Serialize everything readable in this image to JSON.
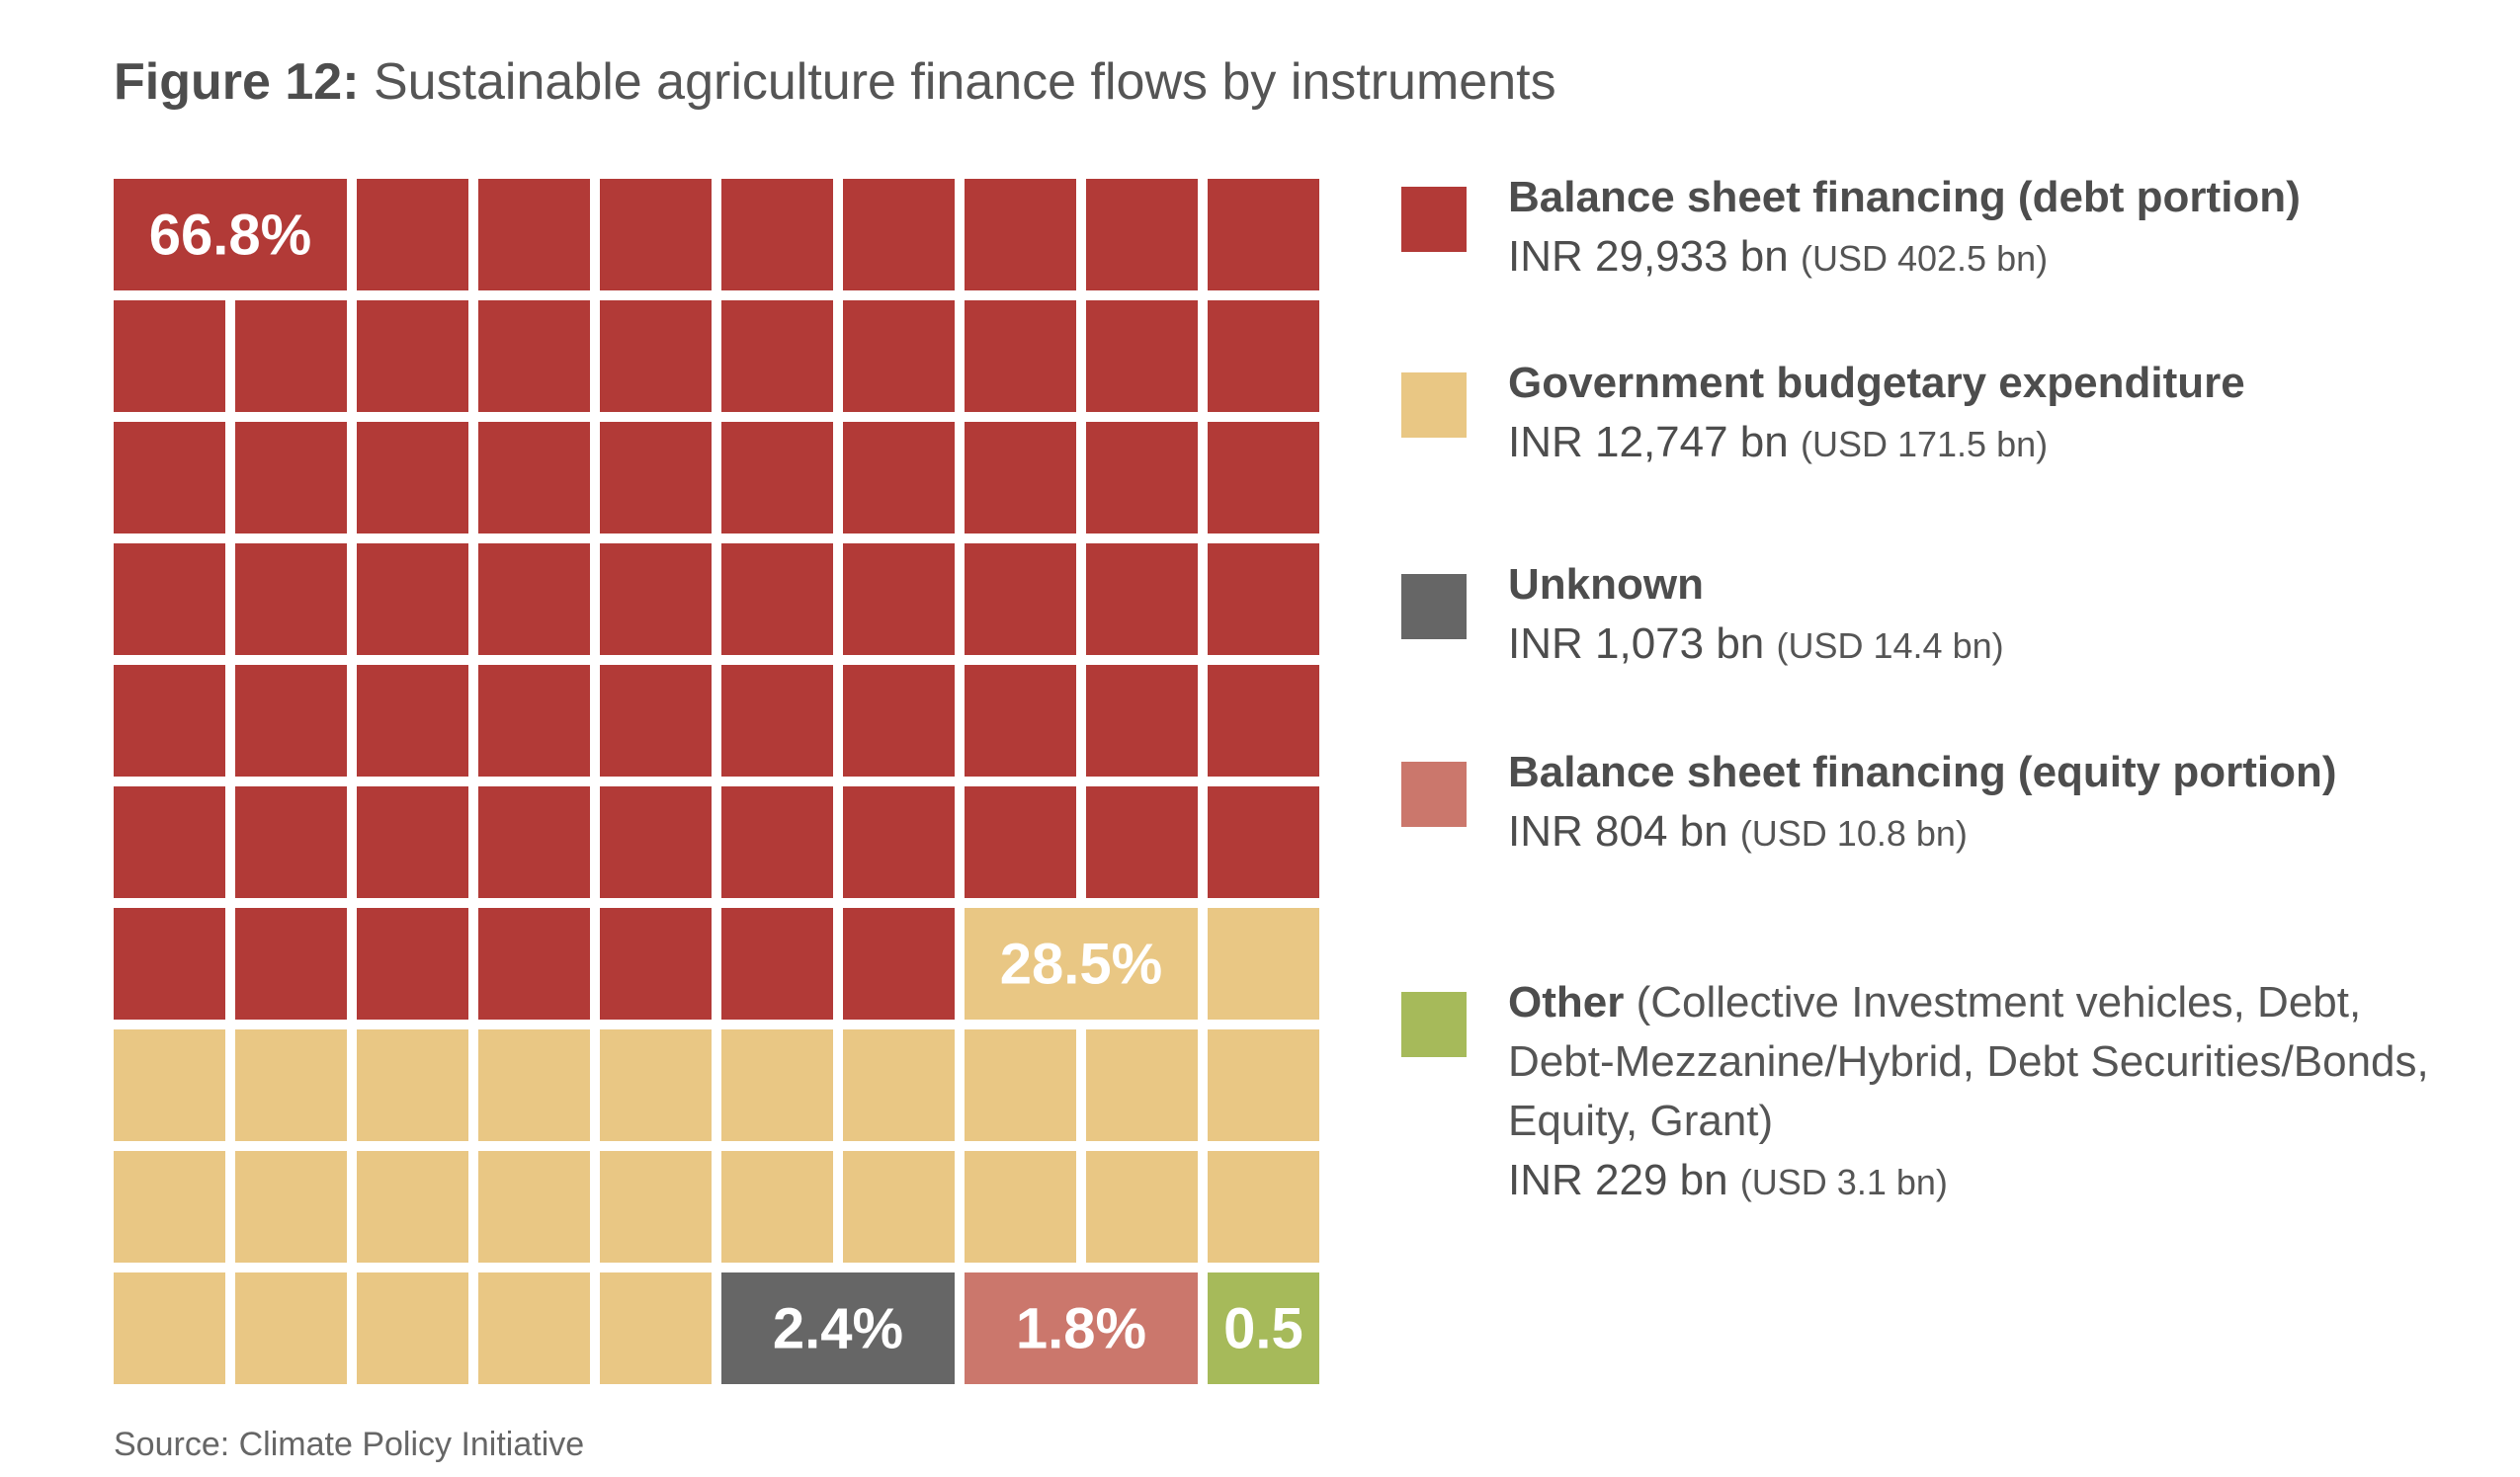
{
  "title": {
    "figure_label": "Figure 12",
    "separator": ":",
    "text": " Sustainable agriculture finance flows by instruments"
  },
  "chart_data": {
    "type": "waffle",
    "grid": {
      "rows": 10,
      "cols": 10
    },
    "segments": [
      {
        "name": "Balance sheet financing (debt portion)",
        "percent": 66.8,
        "cells": 67,
        "label": "66.8%",
        "color": "#b23a37"
      },
      {
        "name": "Government budgetary expenditure",
        "percent": 28.5,
        "cells": 28,
        "label": "28.5%",
        "color": "#e9c784"
      },
      {
        "name": "Unknown",
        "percent": 2.4,
        "cells": 2,
        "label": "2.4%",
        "color": "#666666"
      },
      {
        "name": "Balance sheet financing (equity portion)",
        "percent": 1.8,
        "cells": 2,
        "label": "1.8%",
        "color": "#cb776c"
      },
      {
        "name": "Other",
        "percent": 0.5,
        "cells": 1,
        "label": "0.5",
        "color": "#a6ba5a"
      }
    ]
  },
  "legend": [
    {
      "name": "Balance sheet financing (debt portion)",
      "desc": "",
      "inr": "INR 29,933 bn",
      "usd": "(USD 402.5 bn)",
      "color": "#b23a37"
    },
    {
      "name": "Government budgetary expenditure",
      "desc": "",
      "inr": "INR 12,747 bn",
      "usd": "(USD 171.5 bn)",
      "color": "#e9c784"
    },
    {
      "name": "Unknown",
      "desc": "",
      "inr": "INR 1,073 bn",
      "usd": "(USD 14.4 bn)",
      "color": "#666666"
    },
    {
      "name": "Balance sheet financing (equity portion)",
      "desc": "",
      "inr": "INR 804 bn",
      "usd": "(USD 10.8 bn)",
      "color": "#cb776c"
    },
    {
      "name": "Other",
      "desc": " (Collective Investment vehicles, Debt, Debt-Mezzanine/Hybrid, Debt Securities/Bonds, Equity, Grant)",
      "inr": "INR 229 bn",
      "usd": "(USD 3.1 bn)",
      "color": "#a6ba5a"
    }
  ],
  "source": "Source: Climate Policy Initiative"
}
